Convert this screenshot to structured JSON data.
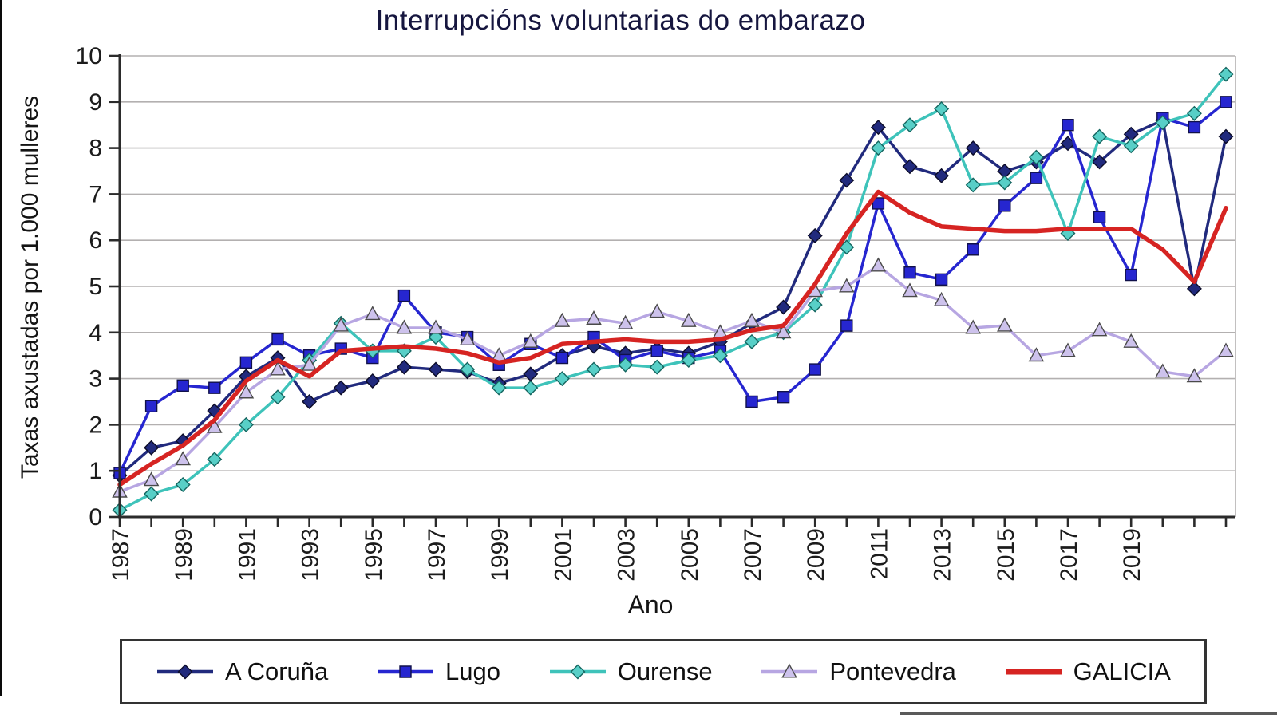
{
  "title": "Interrupcións voluntarias do embarazo",
  "y_axis": {
    "title": "Taxas axustadas por 1.000 mulleres",
    "ticks": [
      0,
      1,
      2,
      3,
      4,
      5,
      6,
      7,
      8,
      9,
      10
    ]
  },
  "x_axis": {
    "title": "Ano",
    "labels": [
      "1987",
      "1989",
      "1991",
      "1993",
      "1995",
      "1997",
      "1999",
      "2001",
      "2003",
      "2005",
      "2007",
      "2009",
      "2011",
      "2013",
      "2015",
      "2017",
      "2019"
    ]
  },
  "colors": {
    "grid": "#b3b0b0",
    "axis": "#2b2b2b",
    "tick_text": "#1c1c1c",
    "title_text": "#16163f"
  },
  "chart_data": {
    "type": "line",
    "x": [
      1987,
      1988,
      1989,
      1990,
      1991,
      1992,
      1993,
      1994,
      1995,
      1996,
      1997,
      1998,
      1999,
      2000,
      2001,
      2002,
      2003,
      2004,
      2005,
      2006,
      2007,
      2008,
      2009,
      2010,
      2011,
      2012,
      2013,
      2014,
      2015,
      2016,
      2017,
      2018,
      2019,
      2020,
      2021,
      2022
    ],
    "ylim": [
      0,
      10
    ],
    "grid": true,
    "legend_position": "bottom",
    "title": "Interrupcións voluntarias do embarazo",
    "xlabel": "Ano",
    "ylabel": "Taxas axustadas por 1.000 mulleres",
    "series": [
      {
        "name": "A Coruña",
        "marker": "diamond",
        "color": "#212a7d",
        "marker_fill": "#212a7d",
        "marker_stroke": "#0c0c28",
        "line_width": 3.5,
        "values": [
          0.9,
          1.5,
          1.65,
          2.3,
          3.05,
          3.45,
          2.5,
          2.8,
          2.95,
          3.25,
          3.2,
          3.15,
          2.9,
          3.1,
          3.5,
          3.7,
          3.55,
          3.65,
          3.55,
          3.8,
          4.2,
          4.55,
          6.1,
          7.3,
          8.45,
          7.6,
          7.4,
          8.0,
          7.5,
          7.7,
          8.1,
          7.7,
          8.3,
          8.6,
          4.95,
          8.25
        ]
      },
      {
        "name": "Lugo",
        "marker": "square",
        "color": "#2626d0",
        "marker_fill": "#2626d0",
        "marker_stroke": "#11114a",
        "line_width": 3.5,
        "values": [
          0.95,
          2.4,
          2.85,
          2.8,
          3.35,
          3.85,
          3.5,
          3.65,
          3.45,
          4.8,
          4.0,
          3.9,
          3.3,
          3.75,
          3.45,
          3.9,
          3.4,
          3.6,
          3.45,
          3.6,
          2.5,
          2.6,
          3.2,
          4.15,
          6.8,
          5.3,
          5.15,
          5.8,
          6.75,
          7.35,
          8.5,
          6.5,
          5.25,
          8.65,
          8.45,
          9.0
        ]
      },
      {
        "name": "Ourense",
        "marker": "diamond",
        "color": "#3ec3ba",
        "marker_fill": "#58cfc7",
        "marker_stroke": "#14655f",
        "line_width": 3.5,
        "values": [
          0.15,
          0.5,
          0.7,
          1.25,
          2.0,
          2.6,
          3.4,
          4.2,
          3.6,
          3.6,
          3.9,
          3.2,
          2.8,
          2.8,
          3.0,
          3.2,
          3.3,
          3.25,
          3.4,
          3.5,
          3.8,
          4.0,
          4.6,
          5.85,
          8.0,
          8.5,
          8.85,
          7.2,
          7.25,
          7.8,
          6.15,
          8.25,
          8.05,
          8.55,
          8.75,
          9.6
        ]
      },
      {
        "name": "Pontevedra",
        "marker": "triangle",
        "color": "#b7a6e2",
        "marker_fill": "#cdc2ec",
        "marker_stroke": "#4a4a4a",
        "line_width": 3.5,
        "values": [
          0.55,
          0.8,
          1.25,
          1.95,
          2.7,
          3.2,
          3.3,
          4.15,
          4.4,
          4.1,
          4.1,
          3.85,
          3.5,
          3.8,
          4.25,
          4.3,
          4.2,
          4.45,
          4.25,
          4.0,
          4.25,
          4.0,
          4.9,
          5.0,
          5.45,
          4.9,
          4.7,
          4.1,
          4.15,
          3.5,
          3.6,
          4.05,
          3.8,
          3.15,
          3.05,
          3.6
        ]
      },
      {
        "name": "GALICIA",
        "marker": "none",
        "color": "#d62422",
        "line_width": 5.5,
        "values": [
          0.7,
          1.15,
          1.55,
          2.1,
          2.95,
          3.4,
          3.05,
          3.6,
          3.65,
          3.7,
          3.65,
          3.55,
          3.35,
          3.45,
          3.75,
          3.8,
          3.85,
          3.8,
          3.8,
          3.85,
          4.05,
          4.15,
          5.05,
          6.15,
          7.05,
          6.6,
          6.3,
          6.25,
          6.2,
          6.2,
          6.25,
          6.25,
          6.25,
          5.8,
          5.1,
          6.7
        ]
      }
    ]
  }
}
